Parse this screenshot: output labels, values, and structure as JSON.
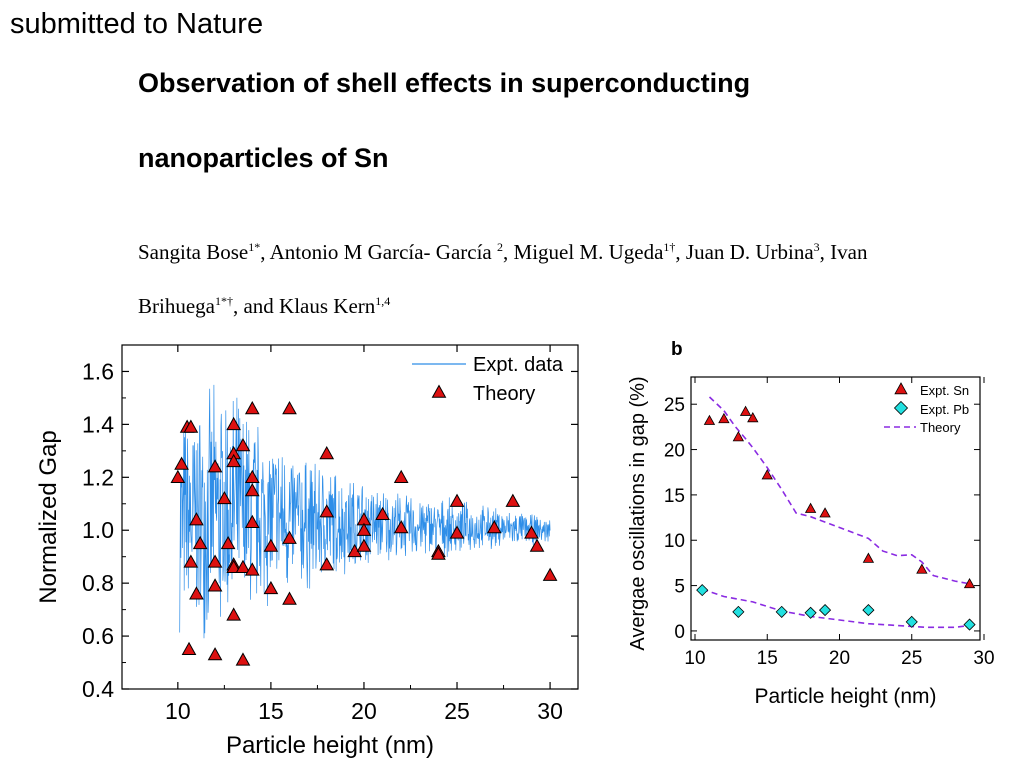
{
  "header_note": "submitted to Nature",
  "title": [
    "Observation of shell effects in superconducting",
    "nanoparticles of Sn"
  ],
  "authors": [
    [
      {
        "name": "Sangita Bose",
        "sup": "1*"
      },
      {
        "name": ", Antonio M  García- García ",
        "sup": "2"
      },
      {
        "name": ", Miguel M. Ugeda",
        "sup": "1†"
      },
      {
        "name": ", Juan D. Urbina",
        "sup": "3"
      },
      {
        "name": ", Ivan",
        "sup": ""
      }
    ],
    [
      {
        "name": "Brihuega",
        "sup": "1*†"
      },
      {
        "name": ", and Klaus Kern",
        "sup": "1,4"
      }
    ]
  ],
  "chart_data": [
    {
      "type": "scatter",
      "panel_label": "",
      "xlabel": "Particle height (nm)",
      "ylabel": "Normalized Gap",
      "xlim": [
        7,
        31.5
      ],
      "ylim": [
        0.4,
        1.7
      ],
      "xticks": [
        10,
        15,
        20,
        25,
        30
      ],
      "yticks": [
        0.4,
        0.6,
        0.8,
        1.0,
        1.2,
        1.4,
        1.6
      ],
      "ytick_labels": [
        "0.4",
        "0.6",
        "0.8",
        "1.0",
        "1.2",
        "1.4",
        "1.6"
      ],
      "legend": [
        "Expt. data",
        "Theory"
      ],
      "legend_position": "top-right",
      "colors": {
        "expt_line": "#2e8ee8",
        "theory_fill": "#dd1111"
      },
      "expt_line_band": {
        "x_range": [
          10.1,
          30
        ],
        "envelope": [
          [
            10.1,
            0.6,
            1.45
          ],
          [
            12.5,
            0.55,
            1.6
          ],
          [
            15,
            0.7,
            1.4
          ],
          [
            17,
            0.75,
            1.3
          ],
          [
            20,
            0.85,
            1.2
          ],
          [
            22,
            0.88,
            1.15
          ],
          [
            25,
            0.9,
            1.12
          ],
          [
            28,
            0.93,
            1.08
          ],
          [
            30,
            0.95,
            1.05
          ]
        ]
      },
      "series": [
        {
          "name": "Theory",
          "points": [
            [
              10,
              1.2
            ],
            [
              10.2,
              1.25
            ],
            [
              10.5,
              1.39
            ],
            [
              10.6,
              0.55
            ],
            [
              10.7,
              0.88
            ],
            [
              10.7,
              1.39
            ],
            [
              11,
              1.04
            ],
            [
              11,
              0.76
            ],
            [
              11.2,
              0.95
            ],
            [
              12,
              1.24
            ],
            [
              12,
              0.88
            ],
            [
              12,
              0.79
            ],
            [
              12,
              0.53
            ],
            [
              12.5,
              1.12
            ],
            [
              12.7,
              0.95
            ],
            [
              13,
              1.4
            ],
            [
              13,
              1.29
            ],
            [
              13,
              1.26
            ],
            [
              13,
              0.87
            ],
            [
              13,
              0.86
            ],
            [
              13,
              0.68
            ],
            [
              13.5,
              1.32
            ],
            [
              13.5,
              0.86
            ],
            [
              13.5,
              0.51
            ],
            [
              14,
              1.46
            ],
            [
              14,
              1.2
            ],
            [
              14,
              1.15
            ],
            [
              14,
              1.03
            ],
            [
              14,
              0.85
            ],
            [
              15,
              0.94
            ],
            [
              15,
              0.78
            ],
            [
              16,
              1.46
            ],
            [
              16,
              0.97
            ],
            [
              16,
              0.74
            ],
            [
              18,
              1.29
            ],
            [
              18,
              1.07
            ],
            [
              18,
              0.87
            ],
            [
              19.5,
              0.92
            ],
            [
              20,
              1.04
            ],
            [
              20,
              1.0
            ],
            [
              20,
              0.94
            ],
            [
              21,
              1.06
            ],
            [
              22,
              1.2
            ],
            [
              22,
              1.01
            ],
            [
              24,
              0.92
            ],
            [
              24,
              0.91
            ],
            [
              25,
              1.11
            ],
            [
              25,
              0.99
            ],
            [
              27,
              1.01
            ],
            [
              28,
              1.11
            ],
            [
              29,
              0.99
            ],
            [
              29.3,
              0.94
            ],
            [
              30,
              0.83
            ]
          ]
        }
      ]
    },
    {
      "type": "scatter",
      "panel_label": "b",
      "xlabel": "Particle height (nm)",
      "ylabel": "Avergae oscillations in gap (%)",
      "xlim": [
        10,
        30
      ],
      "ylim": [
        -1,
        28
      ],
      "xticks": [
        10,
        15,
        20,
        25,
        30
      ],
      "yticks": [
        0,
        5,
        10,
        15,
        20,
        25
      ],
      "legend": [
        "Expt. Sn",
        "Expt. Pb",
        "Theory"
      ],
      "legend_position": "top-right",
      "colors": {
        "sn_fill": "#dd1111",
        "pb_fill": "#22e0e0",
        "theory_line": "#8a2be2"
      },
      "series": [
        {
          "name": "Expt. Sn",
          "points": [
            [
              11,
              23.2
            ],
            [
              12,
              23.4
            ],
            [
              13,
              21.4
            ],
            [
              13.5,
              24.2
            ],
            [
              14,
              23.5
            ],
            [
              15,
              17.2
            ],
            [
              18,
              13.5
            ],
            [
              19,
              13.0
            ],
            [
              22,
              8.0
            ],
            [
              25.7,
              6.8
            ],
            [
              29,
              5.2
            ]
          ]
        },
        {
          "name": "Expt. Pb",
          "points": [
            [
              10.5,
              4.5
            ],
            [
              13,
              2.1
            ],
            [
              16,
              2.1
            ],
            [
              18,
              2.0
            ],
            [
              19,
              2.3
            ],
            [
              22,
              2.3
            ],
            [
              25,
              1.0
            ],
            [
              29,
              0.7
            ]
          ]
        },
        {
          "name": "Theory",
          "points": [
            [
              11,
              25.8
            ],
            [
              12,
              24.3
            ],
            [
              12.8,
              22.5
            ],
            [
              13.5,
              21.2
            ],
            [
              14,
              20.2
            ],
            [
              15,
              18.0
            ],
            [
              16,
              15.6
            ],
            [
              17,
              13.0
            ],
            [
              18,
              12.6
            ],
            [
              19,
              12.0
            ],
            [
              20,
              11.4
            ],
            [
              21,
              10.8
            ],
            [
              22,
              10.2
            ],
            [
              23,
              8.8
            ],
            [
              24,
              8.3
            ],
            [
              25,
              8.4
            ],
            [
              25.7,
              7.6
            ],
            [
              26.5,
              6.1
            ],
            [
              28,
              5.5
            ],
            [
              29,
              5.2
            ],
            [
              10.5,
              4.6
            ],
            [
              12,
              3.8
            ],
            [
              14,
              3.2
            ],
            [
              16,
              2.2
            ],
            [
              18,
              1.6
            ],
            [
              20,
              1.2
            ],
            [
              22,
              0.8
            ],
            [
              24,
              0.6
            ],
            [
              26,
              0.4
            ],
            [
              28,
              0.4
            ],
            [
              29,
              0.6
            ]
          ]
        }
      ]
    }
  ]
}
